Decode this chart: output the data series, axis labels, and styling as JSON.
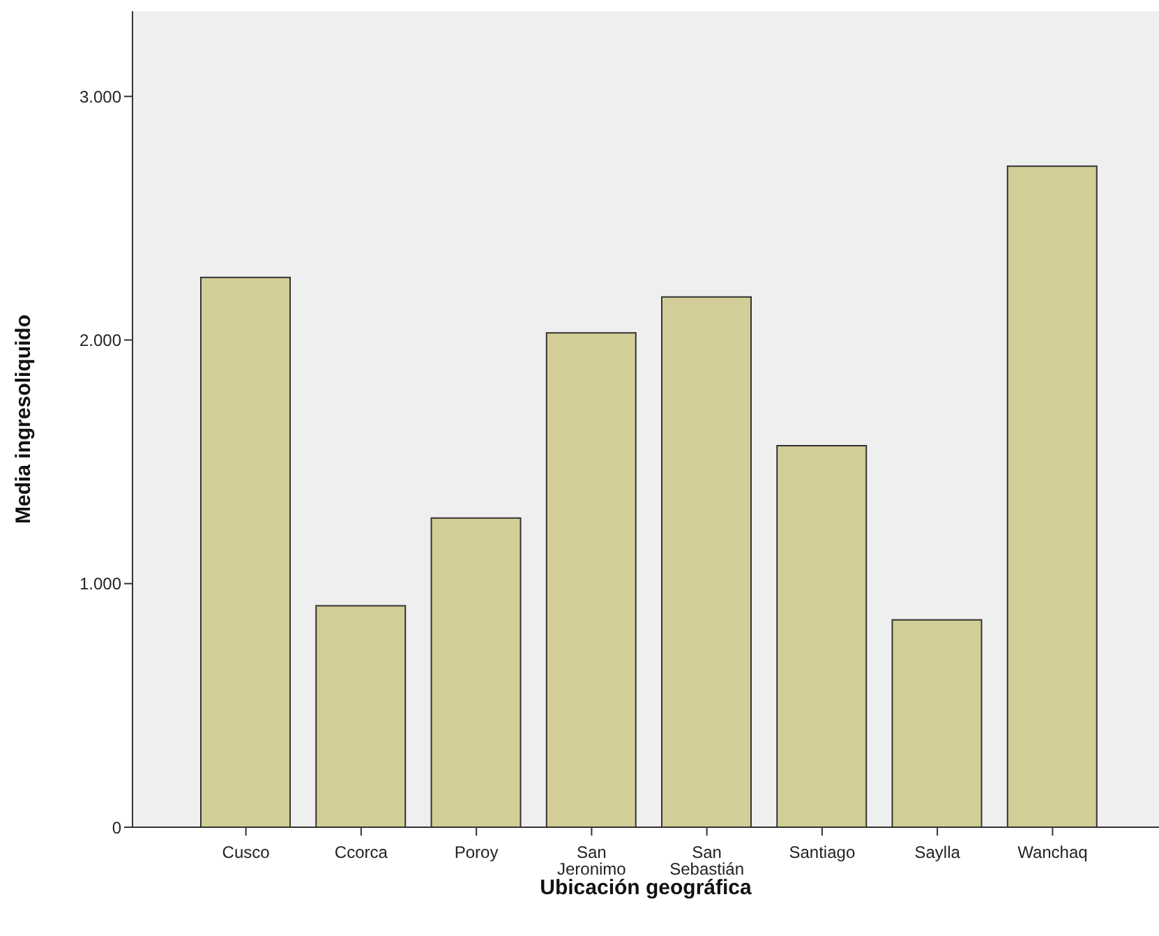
{
  "chart_data": {
    "type": "bar",
    "xlabel": "Ubicación geográfica",
    "ylabel": "Media ingresoliquido",
    "categories": [
      "Cusco",
      "Ccorca",
      "Poroy",
      "San Jeronimo",
      "San Sebastián",
      "Santiago",
      "Saylla",
      "Wanchaq"
    ],
    "values": [
      2257,
      909,
      1269,
      2029,
      2177,
      1566,
      851,
      2714
    ],
    "color": "#d3cd97",
    "ylim": [
      0,
      3350
    ],
    "yticks": [
      0,
      {
        "value": 1000,
        "label": "1.000"
      },
      {
        "value": 2000,
        "label": "2.000"
      },
      {
        "value": 3000,
        "label": "3.000"
      }
    ],
    "grid": false
  }
}
